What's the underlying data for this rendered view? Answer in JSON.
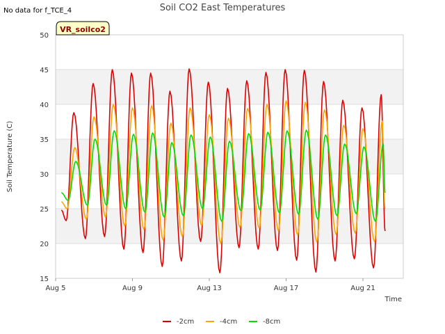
{
  "no_data_note": "No data for f_TCE_4",
  "chart_data": {
    "type": "line",
    "title": "Soil CO2 East Temperatures",
    "xlabel": "Time",
    "ylabel": "Soil Temperature (C)",
    "site_tag": "VR_soilco2",
    "ylim": [
      15,
      50
    ],
    "yticks": [
      15,
      20,
      25,
      30,
      35,
      40,
      45,
      50
    ],
    "xlim": [
      0,
      18.1
    ],
    "xticks": [
      {
        "value": 0,
        "label": "Aug 5"
      },
      {
        "value": 4,
        "label": "Aug 9"
      },
      {
        "value": 8,
        "label": "Aug 13"
      },
      {
        "value": 12,
        "label": "Aug 17"
      },
      {
        "value": 16,
        "label": "Aug 21"
      }
    ],
    "grid": "horizontal bands",
    "legend_position": "bottom-center",
    "series": [
      {
        "name": "-2cm",
        "color": "#dd0000",
        "x": [
          0.3,
          0.55,
          0.95,
          1.55,
          1.95,
          2.55,
          2.95,
          3.55,
          3.95,
          4.55,
          4.95,
          5.55,
          5.95,
          6.55,
          6.95,
          7.55,
          7.95,
          8.55,
          8.95,
          9.55,
          9.95,
          10.55,
          10.95,
          11.55,
          11.95,
          12.55,
          12.95,
          13.55,
          13.95,
          14.55,
          14.95,
          15.55,
          15.95,
          16.55,
          16.95,
          17.15
        ],
        "y": [
          24.8,
          23.3,
          38.8,
          20.7,
          43.0,
          21.0,
          45.0,
          19.2,
          44.5,
          18.7,
          44.5,
          16.7,
          41.9,
          17.5,
          45.1,
          20.3,
          43.2,
          15.8,
          42.3,
          19.4,
          43.4,
          19.2,
          44.6,
          19.0,
          45.0,
          17.6,
          44.9,
          15.9,
          43.3,
          17.5,
          40.6,
          17.8,
          39.5,
          16.5,
          41.4,
          21.8
        ]
      },
      {
        "name": "-4cm",
        "color": "#ffa500",
        "x": [
          0.3,
          0.6,
          1.0,
          1.6,
          2.0,
          2.6,
          3.0,
          3.6,
          4.0,
          4.6,
          5.0,
          5.6,
          6.0,
          6.6,
          7.0,
          7.6,
          8.0,
          8.6,
          9.0,
          9.6,
          10.0,
          10.6,
          11.0,
          11.6,
          12.0,
          12.6,
          13.0,
          13.6,
          14.0,
          14.6,
          15.0,
          15.6,
          16.0,
          16.6,
          17.0,
          17.15
        ],
        "y": [
          26.0,
          25.0,
          33.8,
          23.5,
          38.2,
          23.8,
          40.0,
          22.5,
          39.5,
          22.0,
          39.8,
          20.5,
          37.3,
          21.0,
          39.5,
          22.6,
          38.5,
          20.0,
          38.0,
          22.3,
          39.4,
          22.2,
          40.0,
          21.8,
          40.5,
          21.2,
          40.3,
          20.2,
          39.2,
          21.3,
          37.0,
          21.5,
          36.5,
          20.3,
          37.6,
          25.0
        ]
      },
      {
        "name": "-8cm",
        "color": "#00dd00",
        "x": [
          0.3,
          0.65,
          1.05,
          1.65,
          2.05,
          2.65,
          3.05,
          3.65,
          4.05,
          4.65,
          5.05,
          5.65,
          6.05,
          6.65,
          7.05,
          7.65,
          8.05,
          8.65,
          9.05,
          9.65,
          10.05,
          10.65,
          11.05,
          11.65,
          12.05,
          12.65,
          13.05,
          13.65,
          14.05,
          14.65,
          15.05,
          15.65,
          16.05,
          16.65,
          17.05,
          17.15
        ],
        "y": [
          27.3,
          26.2,
          31.8,
          25.5,
          35.0,
          25.5,
          36.2,
          25.0,
          35.7,
          24.5,
          35.9,
          23.8,
          34.5,
          24.0,
          35.6,
          25.0,
          35.3,
          23.2,
          34.7,
          24.7,
          35.8,
          24.8,
          36.0,
          24.4,
          36.2,
          24.2,
          36.3,
          23.5,
          35.6,
          24.0,
          34.3,
          24.3,
          33.9,
          23.2,
          34.3,
          27.3
        ]
      }
    ]
  }
}
